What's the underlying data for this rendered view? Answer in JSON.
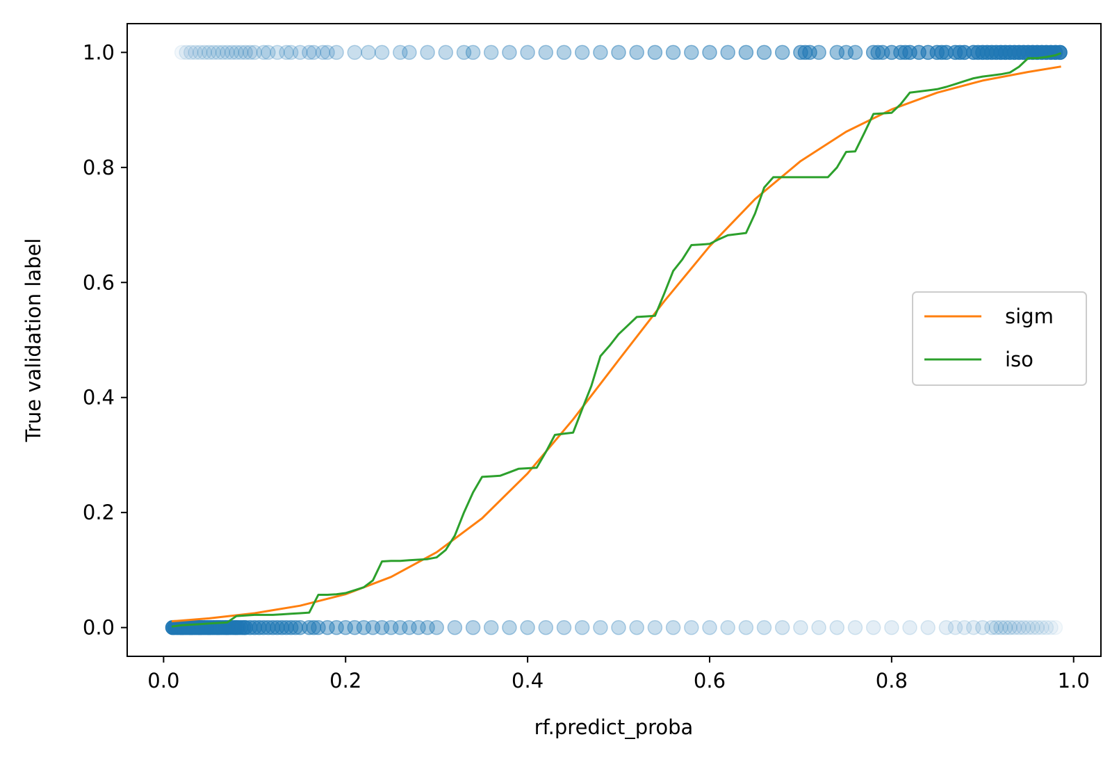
{
  "chart_data": {
    "type": "scatter",
    "xlabel": "rf.predict_proba",
    "ylabel": "True validation label",
    "xlim": [
      -0.04,
      1.03
    ],
    "ylim": [
      -0.05,
      1.05
    ],
    "x_ticks": [
      0.0,
      0.2,
      0.4,
      0.6,
      0.8,
      1.0
    ],
    "x_tick_labels": [
      "0.0",
      "0.2",
      "0.4",
      "0.6",
      "0.8",
      "1.0"
    ],
    "y_ticks": [
      0.0,
      0.2,
      0.4,
      0.6,
      0.8,
      1.0
    ],
    "y_tick_labels": [
      "0.0",
      "0.2",
      "0.4",
      "0.6",
      "0.8",
      "1.0"
    ],
    "grid": false,
    "legend": {
      "placement": "center-right",
      "entries": [
        {
          "label": "sigm",
          "color": "#ff7f0e"
        },
        {
          "label": "iso",
          "color": "#2ca02c"
        }
      ]
    },
    "scatter_color": "#1f77b4",
    "scatter": {
      "y1_x": [
        0.02,
        0.025,
        0.03,
        0.035,
        0.04,
        0.045,
        0.05,
        0.055,
        0.06,
        0.065,
        0.07,
        0.075,
        0.08,
        0.085,
        0.09,
        0.095,
        0.1,
        0.11,
        0.115,
        0.125,
        0.135,
        0.14,
        0.15,
        0.16,
        0.165,
        0.175,
        0.18,
        0.19,
        0.21,
        0.225,
        0.24,
        0.26,
        0.27,
        0.29,
        0.31,
        0.33,
        0.34,
        0.36,
        0.38,
        0.4,
        0.42,
        0.44,
        0.46,
        0.48,
        0.5,
        0.52,
        0.54,
        0.56,
        0.58,
        0.6,
        0.62,
        0.64,
        0.66,
        0.68,
        0.7,
        0.705,
        0.71,
        0.72,
        0.74,
        0.75,
        0.76,
        0.78,
        0.785,
        0.79,
        0.8,
        0.81,
        0.815,
        0.82,
        0.83,
        0.84,
        0.85,
        0.855,
        0.86,
        0.87,
        0.875,
        0.88,
        0.89,
        0.895,
        0.9,
        0.905,
        0.91,
        0.915,
        0.92,
        0.925,
        0.93,
        0.935,
        0.94,
        0.945,
        0.95,
        0.955,
        0.96,
        0.965,
        0.97,
        0.975,
        0.98,
        0.985
      ],
      "y1_alpha": [
        0.06,
        0.1,
        0.12,
        0.12,
        0.13,
        0.14,
        0.15,
        0.15,
        0.15,
        0.16,
        0.16,
        0.17,
        0.17,
        0.17,
        0.18,
        0.18,
        0.18,
        0.2,
        0.2,
        0.2,
        0.2,
        0.2,
        0.22,
        0.22,
        0.22,
        0.22,
        0.22,
        0.24,
        0.24,
        0.25,
        0.26,
        0.26,
        0.27,
        0.28,
        0.28,
        0.29,
        0.3,
        0.3,
        0.32,
        0.32,
        0.33,
        0.34,
        0.35,
        0.36,
        0.38,
        0.38,
        0.4,
        0.4,
        0.4,
        0.42,
        0.42,
        0.45,
        0.45,
        0.45,
        0.5,
        0.52,
        0.52,
        0.45,
        0.45,
        0.45,
        0.45,
        0.5,
        0.5,
        0.5,
        0.55,
        0.55,
        0.55,
        0.6,
        0.6,
        0.6,
        0.6,
        0.6,
        0.62,
        0.62,
        0.62,
        0.65,
        0.65,
        0.65,
        0.7,
        0.7,
        0.7,
        0.7,
        0.75,
        0.75,
        0.75,
        0.75,
        0.8,
        0.8,
        0.8,
        0.85,
        0.85,
        0.85,
        0.9,
        0.9,
        0.9,
        0.9
      ],
      "y0_x": [
        0.01,
        0.012,
        0.015,
        0.018,
        0.02,
        0.022,
        0.025,
        0.028,
        0.03,
        0.032,
        0.035,
        0.038,
        0.04,
        0.042,
        0.045,
        0.048,
        0.05,
        0.052,
        0.055,
        0.058,
        0.06,
        0.062,
        0.065,
        0.068,
        0.07,
        0.072,
        0.075,
        0.078,
        0.08,
        0.082,
        0.085,
        0.088,
        0.09,
        0.095,
        0.1,
        0.105,
        0.11,
        0.115,
        0.12,
        0.125,
        0.13,
        0.135,
        0.14,
        0.145,
        0.15,
        0.16,
        0.165,
        0.17,
        0.18,
        0.19,
        0.2,
        0.21,
        0.22,
        0.23,
        0.24,
        0.25,
        0.26,
        0.27,
        0.28,
        0.29,
        0.3,
        0.32,
        0.34,
        0.36,
        0.38,
        0.4,
        0.42,
        0.44,
        0.46,
        0.48,
        0.5,
        0.52,
        0.54,
        0.56,
        0.58,
        0.6,
        0.62,
        0.64,
        0.66,
        0.68,
        0.7,
        0.72,
        0.74,
        0.76,
        0.78,
        0.8,
        0.82,
        0.84,
        0.86,
        0.87,
        0.88,
        0.89,
        0.9,
        0.91,
        0.915,
        0.92,
        0.925,
        0.93,
        0.935,
        0.94,
        0.945,
        0.95,
        0.955,
        0.96,
        0.965,
        0.97,
        0.975,
        0.98
      ],
      "y0_alpha": [
        0.9,
        0.9,
        0.9,
        0.9,
        0.9,
        0.9,
        0.85,
        0.85,
        0.85,
        0.85,
        0.8,
        0.8,
        0.8,
        0.8,
        0.8,
        0.75,
        0.75,
        0.75,
        0.75,
        0.7,
        0.7,
        0.7,
        0.7,
        0.7,
        0.65,
        0.65,
        0.65,
        0.65,
        0.6,
        0.6,
        0.6,
        0.6,
        0.6,
        0.55,
        0.55,
        0.55,
        0.5,
        0.5,
        0.5,
        0.5,
        0.5,
        0.48,
        0.48,
        0.45,
        0.45,
        0.45,
        0.45,
        0.42,
        0.42,
        0.4,
        0.4,
        0.4,
        0.4,
        0.38,
        0.38,
        0.36,
        0.36,
        0.35,
        0.35,
        0.34,
        0.33,
        0.32,
        0.32,
        0.3,
        0.3,
        0.29,
        0.28,
        0.28,
        0.27,
        0.26,
        0.26,
        0.25,
        0.24,
        0.24,
        0.22,
        0.22,
        0.2,
        0.2,
        0.2,
        0.18,
        0.15,
        0.15,
        0.15,
        0.13,
        0.12,
        0.12,
        0.12,
        0.12,
        0.12,
        0.12,
        0.12,
        0.13,
        0.15,
        0.15,
        0.15,
        0.15,
        0.15,
        0.15,
        0.12,
        0.12,
        0.12,
        0.1,
        0.1,
        0.1,
        0.08,
        0.08,
        0.06,
        0.05
      ]
    },
    "series": [
      {
        "name": "sigm",
        "color": "#ff7f0e",
        "x": [
          0.01,
          0.05,
          0.1,
          0.15,
          0.2,
          0.25,
          0.3,
          0.35,
          0.4,
          0.45,
          0.5,
          0.55,
          0.6,
          0.65,
          0.7,
          0.75,
          0.8,
          0.85,
          0.9,
          0.95,
          0.985
        ],
        "y": [
          0.011,
          0.016,
          0.025,
          0.038,
          0.058,
          0.088,
          0.131,
          0.19,
          0.268,
          0.362,
          0.465,
          0.567,
          0.663,
          0.745,
          0.811,
          0.862,
          0.901,
          0.93,
          0.951,
          0.966,
          0.975
        ]
      },
      {
        "name": "iso",
        "color": "#2ca02c",
        "x": [
          0.01,
          0.02,
          0.03,
          0.04,
          0.05,
          0.06,
          0.07,
          0.08,
          0.09,
          0.1,
          0.11,
          0.12,
          0.13,
          0.14,
          0.15,
          0.16,
          0.17,
          0.18,
          0.19,
          0.2,
          0.21,
          0.22,
          0.23,
          0.24,
          0.25,
          0.26,
          0.27,
          0.28,
          0.29,
          0.3,
          0.31,
          0.32,
          0.33,
          0.34,
          0.35,
          0.36,
          0.37,
          0.38,
          0.39,
          0.4,
          0.41,
          0.42,
          0.43,
          0.44,
          0.45,
          0.46,
          0.47,
          0.48,
          0.49,
          0.5,
          0.51,
          0.52,
          0.53,
          0.54,
          0.55,
          0.56,
          0.57,
          0.58,
          0.59,
          0.6,
          0.61,
          0.62,
          0.63,
          0.64,
          0.65,
          0.66,
          0.67,
          0.68,
          0.69,
          0.7,
          0.71,
          0.72,
          0.73,
          0.74,
          0.75,
          0.76,
          0.77,
          0.78,
          0.79,
          0.8,
          0.81,
          0.82,
          0.83,
          0.84,
          0.85,
          0.86,
          0.87,
          0.88,
          0.89,
          0.9,
          0.91,
          0.92,
          0.93,
          0.94,
          0.95,
          0.96,
          0.97,
          0.98,
          0.985
        ],
        "y": [
          0.002,
          0.004,
          0.005,
          0.006,
          0.007,
          0.008,
          0.009,
          0.02,
          0.021,
          0.022,
          0.022,
          0.022,
          0.023,
          0.024,
          0.025,
          0.026,
          0.057,
          0.057,
          0.058,
          0.06,
          0.065,
          0.07,
          0.082,
          0.115,
          0.116,
          0.116,
          0.117,
          0.118,
          0.119,
          0.122,
          0.135,
          0.16,
          0.2,
          0.235,
          0.262,
          0.263,
          0.264,
          0.27,
          0.276,
          0.277,
          0.278,
          0.305,
          0.335,
          0.337,
          0.339,
          0.38,
          0.42,
          0.472,
          0.49,
          0.51,
          0.525,
          0.54,
          0.541,
          0.542,
          0.58,
          0.62,
          0.64,
          0.665,
          0.666,
          0.667,
          0.675,
          0.682,
          0.684,
          0.686,
          0.72,
          0.765,
          0.783,
          0.783,
          0.783,
          0.783,
          0.783,
          0.783,
          0.783,
          0.8,
          0.827,
          0.828,
          0.86,
          0.893,
          0.894,
          0.895,
          0.91,
          0.93,
          0.932,
          0.934,
          0.936,
          0.94,
          0.945,
          0.95,
          0.955,
          0.958,
          0.96,
          0.962,
          0.965,
          0.975,
          0.99,
          0.99,
          0.992,
          0.995,
          0.998
        ]
      }
    ]
  }
}
